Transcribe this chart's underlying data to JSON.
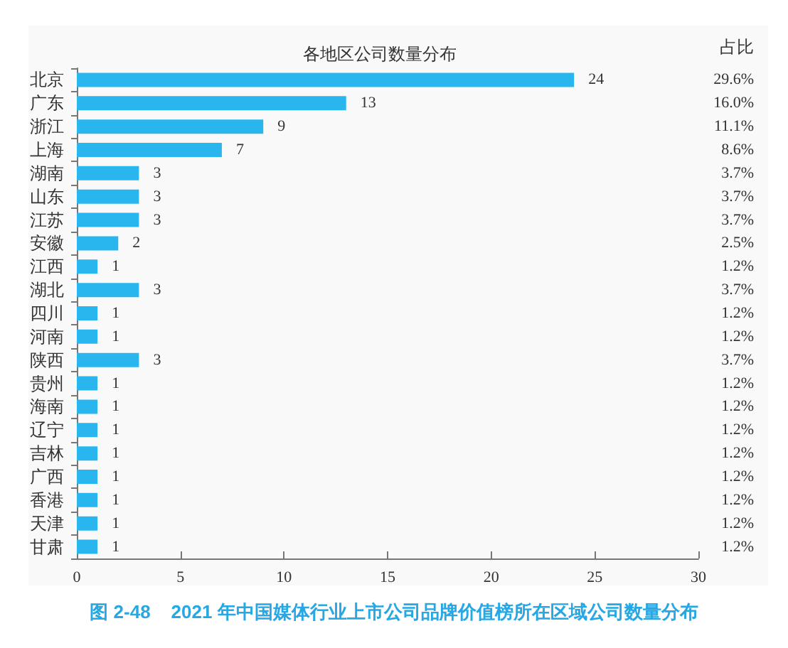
{
  "chart_data": {
    "type": "bar",
    "orientation": "horizontal",
    "title": "各地区公司数量分布",
    "categories": [
      "北京",
      "广东",
      "浙江",
      "上海",
      "湖南",
      "山东",
      "江苏",
      "安徽",
      "江西",
      "湖北",
      "四川",
      "河南",
      "陕西",
      "贵州",
      "海南",
      "辽宁",
      "吉林",
      "广西",
      "香港",
      "天津",
      "甘肃"
    ],
    "values": [
      24,
      13,
      9,
      7,
      3,
      3,
      3,
      2,
      1,
      3,
      1,
      1,
      3,
      1,
      1,
      1,
      1,
      1,
      1,
      1,
      1
    ],
    "color": "#29b6ee",
    "xlim": [
      0,
      30
    ],
    "xticks": [
      0,
      5,
      10,
      15,
      20,
      25,
      30
    ],
    "data_labels": true,
    "annotations": [
      "占比",
      "29.6%",
      "16.0%",
      "11.1%",
      "8.6%",
      "3.7%",
      "3.7%",
      "3.7%",
      "2.5%",
      "1.2%",
      "3.7%",
      "1.2%",
      "1.2%",
      "3.7%",
      "1.2%",
      "1.2%",
      "1.2%",
      "1.2%",
      "1.2%",
      "1.2%",
      "1.2%",
      "1.2%",
      "图 2-48    2021 年中国媒体行业上市公司品牌价值榜所在区域公司数量分布"
    ]
  }
}
